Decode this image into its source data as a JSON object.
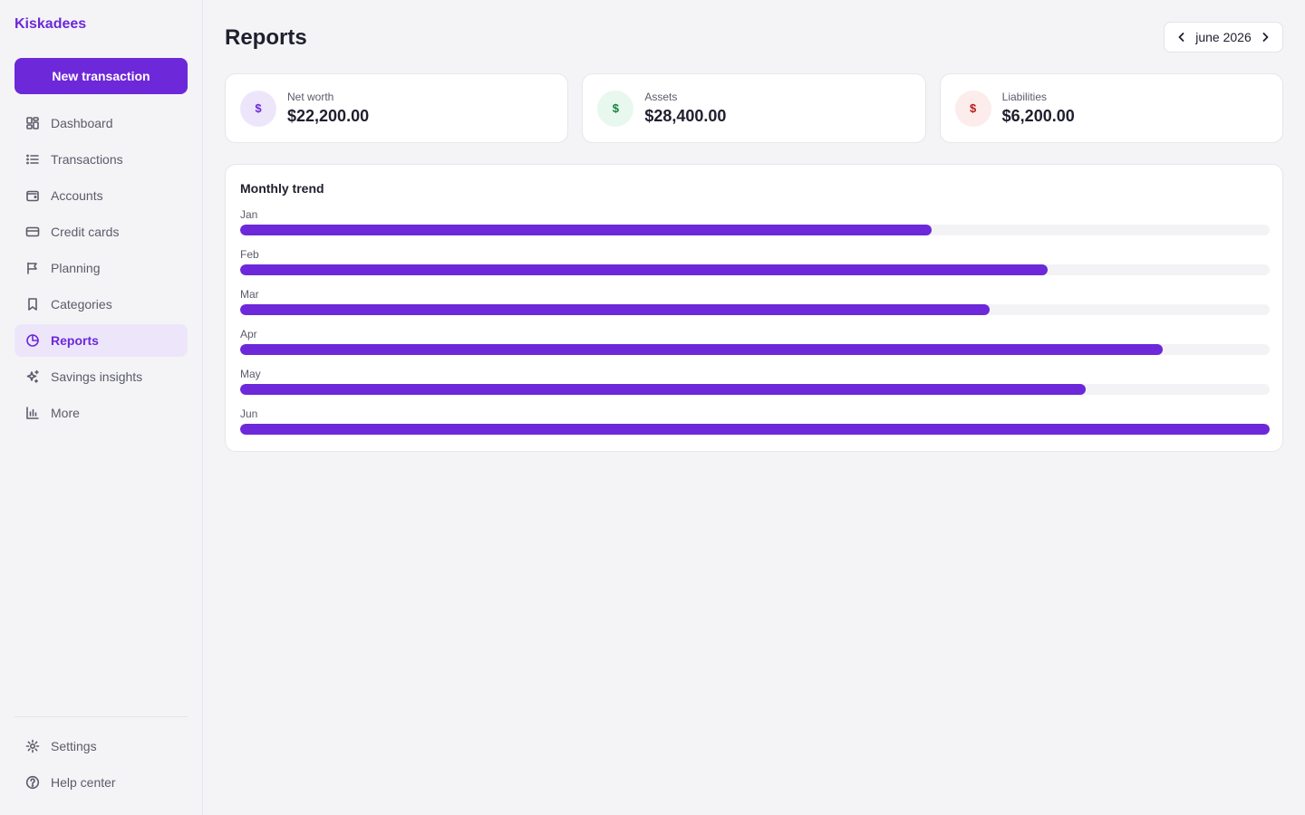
{
  "app": {
    "brand": "Kiskadees"
  },
  "sidebar": {
    "new_button": "New transaction",
    "items": [
      {
        "label": "Dashboard",
        "icon": "dashboard-icon",
        "active": false
      },
      {
        "label": "Transactions",
        "icon": "list-icon",
        "active": false
      },
      {
        "label": "Accounts",
        "icon": "wallet-icon",
        "active": false
      },
      {
        "label": "Credit cards",
        "icon": "credit-card-icon",
        "active": false
      },
      {
        "label": "Planning",
        "icon": "flag-icon",
        "active": false
      },
      {
        "label": "Categories",
        "icon": "bookmark-icon",
        "active": false
      },
      {
        "label": "Reports",
        "icon": "pie-chart-icon",
        "active": true
      },
      {
        "label": "Savings insights",
        "icon": "sparkles-icon",
        "active": false
      },
      {
        "label": "More",
        "icon": "bar-chart-icon",
        "active": false
      }
    ],
    "bottom_items": [
      {
        "label": "Settings",
        "icon": "gear-icon"
      },
      {
        "label": "Help center",
        "icon": "help-circle-icon"
      }
    ]
  },
  "header": {
    "title": "Reports",
    "month": "june 2026"
  },
  "cards": [
    {
      "label": "Net worth",
      "value": "$22,200.00",
      "symbol": "$",
      "badge_bg": "#ede6fb",
      "badge_fg": "#6d28d9"
    },
    {
      "label": "Assets",
      "value": "$28,400.00",
      "symbol": "$",
      "badge_bg": "#e8f8ee",
      "badge_fg": "#15803d"
    },
    {
      "label": "Liabilities",
      "value": "$6,200.00",
      "symbol": "$",
      "badge_bg": "#fdecec",
      "badge_fg": "#b91c1c"
    }
  ],
  "trend": {
    "title": "Monthly trend"
  },
  "chart_data": {
    "type": "bar",
    "orientation": "horizontal",
    "categories": [
      "Jan",
      "Feb",
      "Mar",
      "Apr",
      "May",
      "Jun"
    ],
    "values": [
      0.672,
      0.784,
      0.728,
      0.896,
      0.821,
      1.0
    ],
    "xlim": [
      0,
      1
    ],
    "grid": false
  },
  "colors": {
    "accent": "#6d28d9",
    "active_bg": "#ede6fb",
    "track": "#f3f3f5"
  }
}
